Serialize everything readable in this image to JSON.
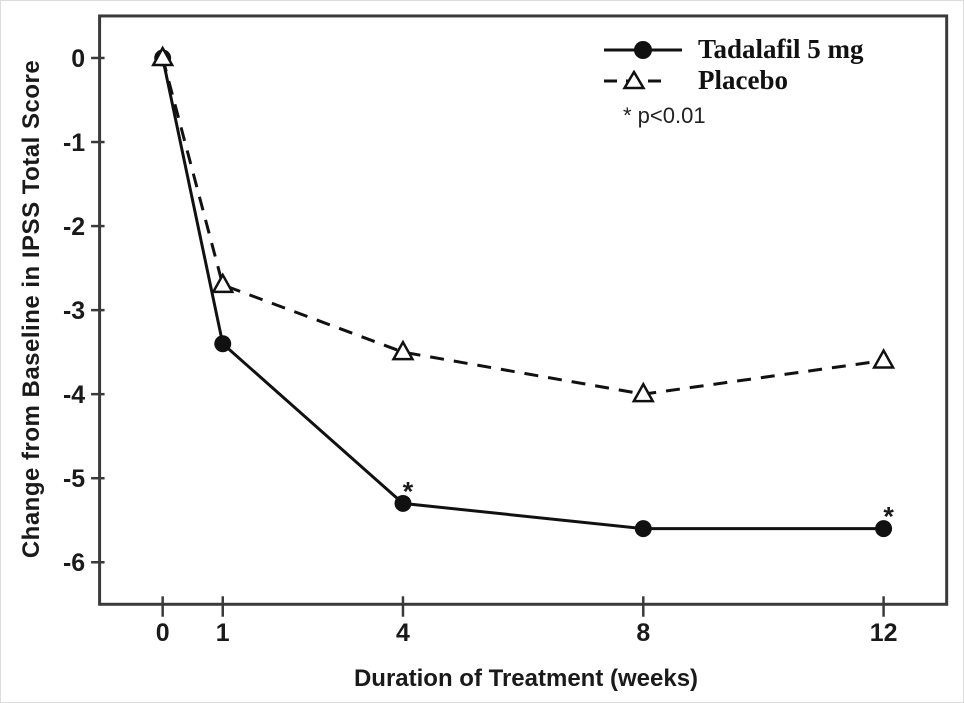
{
  "figure": {
    "background": "#ffffff",
    "border_color": "#dcdcdc"
  },
  "chart_data": {
    "type": "line",
    "title": "",
    "xlabel": "Duration of Treatment (weeks)",
    "ylabel": "Change from Baseline in IPSS Total Score",
    "annotation": "* p<0.01",
    "x_ticks": [
      0,
      1,
      4,
      8,
      12
    ],
    "y_ticks": [
      0,
      -1,
      -2,
      -3,
      -4,
      -5,
      -6
    ],
    "xlim": [
      -1.05,
      13.05
    ],
    "ylim": [
      -6.5,
      0.5
    ],
    "grid": false,
    "legend_position": "top-right",
    "series": [
      {
        "name": "Tadalafil 5 mg",
        "marker": "filled-circle",
        "line_style": "solid",
        "x": [
          0,
          1,
          4,
          8,
          12
        ],
        "values": [
          0,
          -3.4,
          -5.3,
          -5.6,
          -5.6
        ],
        "significant_points": [
          4,
          12
        ]
      },
      {
        "name": "Placebo",
        "marker": "open-triangle",
        "line_style": "dashed",
        "x": [
          0,
          1,
          4,
          8,
          12
        ],
        "values": [
          0,
          -2.7,
          -3.5,
          -4.0,
          -3.6
        ],
        "significant_points": []
      }
    ],
    "colors": {
      "series": "#111111",
      "frame": "#3a3a3a",
      "text": "#1a1a1a"
    }
  }
}
